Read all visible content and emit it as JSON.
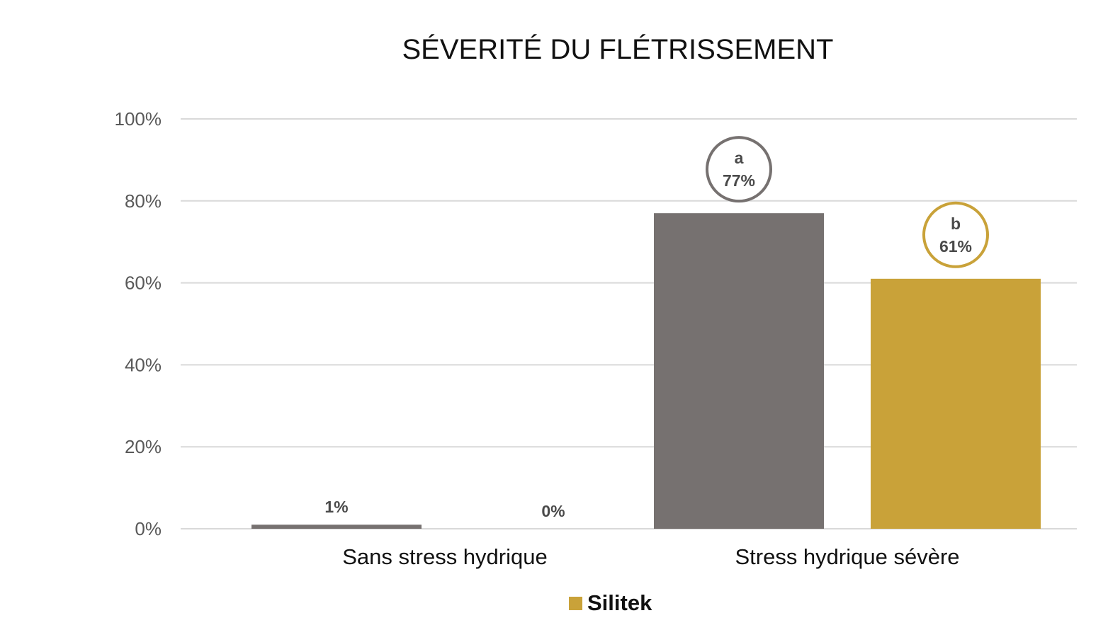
{
  "chart_data": {
    "type": "bar",
    "title": "SÉVERITÉ DU FLÉTRISSEMENT",
    "xlabel": "",
    "ylabel": "",
    "categories": [
      "Sans stress hydrique",
      "Stress hydrique sévère"
    ],
    "ylim": [
      0,
      100
    ],
    "yticks": [
      0,
      20,
      40,
      60,
      80,
      100
    ],
    "ytick_labels": [
      "0%",
      "20%",
      "40%",
      "60%",
      "80%",
      "100%"
    ],
    "grid": true,
    "legend_position": "bottom",
    "series": [
      {
        "color": "#767170",
        "values": [
          1,
          77
        ],
        "labels": [
          "1%",
          "77%"
        ],
        "letters": [
          "",
          "a"
        ],
        "show_in_legend": false
      },
      {
        "name": "Silitek",
        "color": "#C9A239",
        "values": [
          0,
          61
        ],
        "labels": [
          "0%",
          "61%"
        ],
        "letters": [
          "",
          "b"
        ],
        "show_in_legend": true
      }
    ]
  }
}
